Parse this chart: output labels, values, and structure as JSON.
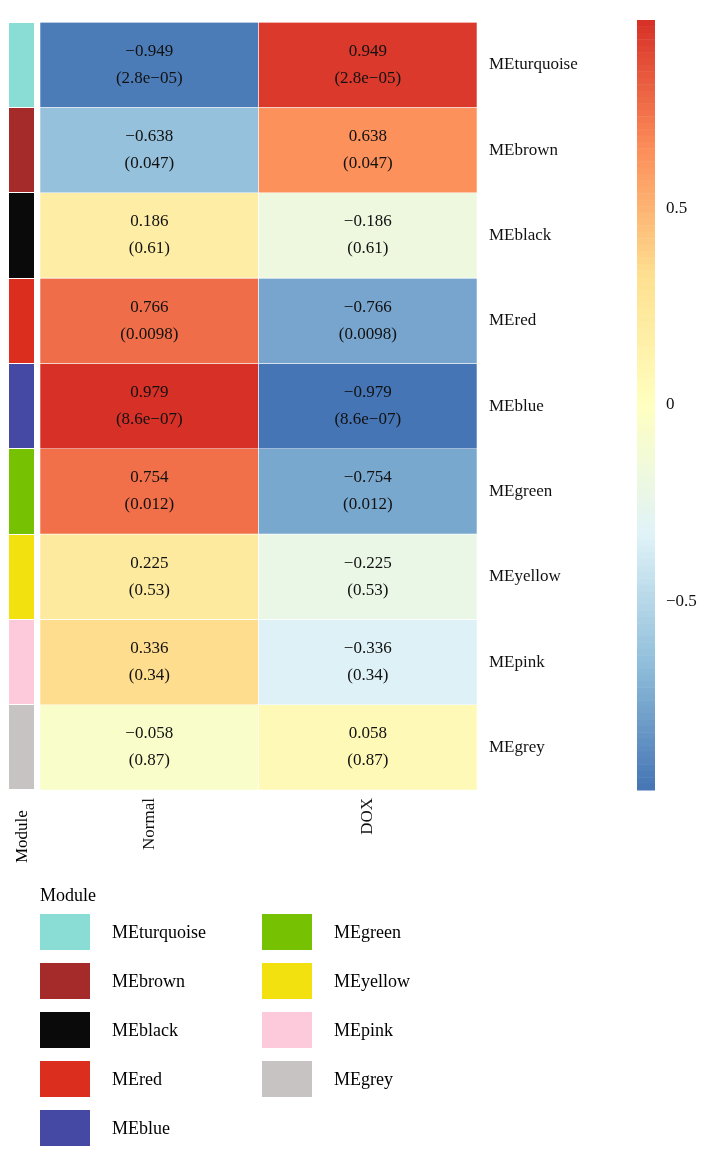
{
  "chart_data": {
    "type": "heatmap",
    "categories": [
      "Normal",
      "DOX"
    ],
    "y_categories": [
      "MEturquoise",
      "MEbrown",
      "MEblack",
      "MEred",
      "MEblue",
      "MEgreen",
      "MEyellow",
      "MEpink",
      "MEgrey"
    ],
    "cells": [
      [
        -0.949,
        0.949
      ],
      [
        -0.638,
        0.638
      ],
      [
        0.186,
        -0.186
      ],
      [
        0.766,
        -0.766
      ],
      [
        0.979,
        -0.979
      ],
      [
        0.754,
        -0.754
      ],
      [
        0.225,
        -0.225
      ],
      [
        0.336,
        -0.336
      ],
      [
        -0.058,
        0.058
      ]
    ],
    "cell_labels": [
      [
        "−0.949\n(2.8e−05)",
        "0.949\n(2.8e−05)"
      ],
      [
        "−0.638\n(0.047)",
        "0.638\n(0.047)"
      ],
      [
        "0.186\n(0.61)",
        "−0.186\n(0.61)"
      ],
      [
        "0.766\n(0.0098)",
        "−0.766\n(0.0098)"
      ],
      [
        "0.979\n(8.6e−07)",
        "−0.979\n(8.6e−07)"
      ],
      [
        "0.754\n(0.012)",
        "−0.754\n(0.012)"
      ],
      [
        "0.225\n(0.53)",
        "−0.225\n(0.53)"
      ],
      [
        "0.336\n(0.34)",
        "−0.336\n(0.34)"
      ],
      [
        "−0.058\n(0.87)",
        "0.058\n(0.87)"
      ]
    ],
    "clim": [
      -0.979,
      0.979
    ],
    "cticks": [
      {
        "value": -0.5,
        "label": "−0.5"
      },
      0,
      0.5
    ],
    "colors": [
      "#89ddd5",
      "#a52a2a",
      "#0a0a0a",
      "#dc2e1f",
      "#4549a4",
      "#77c103",
      "#f3e00f",
      "#fdcadb",
      "#c8c3c3"
    ],
    "legend_title": "Module",
    "annotations": [
      "Module"
    ]
  }
}
